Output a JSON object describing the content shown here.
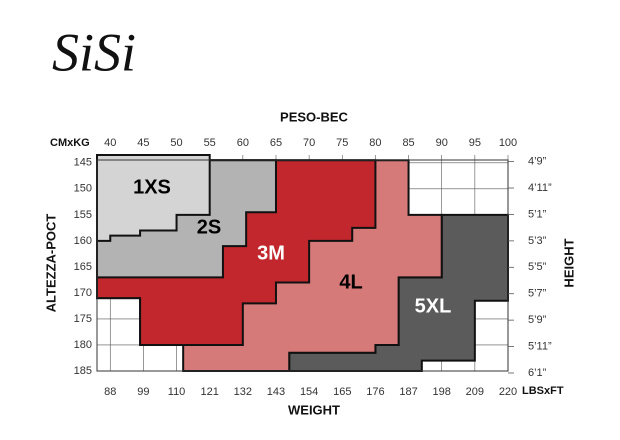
{
  "chart_data": {
    "type": "size-chart",
    "logo": "SiSi",
    "title": "PESO-BEC",
    "xunit_label": "CMxKG",
    "x2unit_label": "LBSxFT",
    "xlabel": "WEIGHT",
    "ylabel": "ALTEZZA-POCT",
    "y2label": "HEIGHT",
    "xlim": [
      38,
      100
    ],
    "xticks": [
      40,
      45,
      50,
      55,
      60,
      65,
      70,
      75,
      80,
      85,
      90,
      95,
      100
    ],
    "x2lim": [
      83.6,
      220
    ],
    "x2ticks": [
      88,
      99,
      110,
      121,
      132,
      143,
      154,
      165,
      176,
      187,
      198,
      209,
      220
    ],
    "ylim": [
      143.5,
      185
    ],
    "yticks": [
      145,
      150,
      155,
      160,
      165,
      170,
      175,
      180,
      185
    ],
    "y2lim": [
      56.5,
      72.85
    ],
    "y2ticks": [
      {
        "value": 57,
        "label": "4’9”"
      },
      {
        "value": 59,
        "label": "4’11”"
      },
      {
        "value": 61,
        "label": "5’1”"
      },
      {
        "value": 63,
        "label": "5’3”"
      },
      {
        "value": 65,
        "label": "5’5”"
      },
      {
        "value": 67,
        "label": "5’7”"
      },
      {
        "value": 69,
        "label": "5’9”"
      },
      {
        "value": 71,
        "label": "5’11”"
      },
      {
        "value": 73,
        "label": "6’1”"
      }
    ],
    "grid": true,
    "series": [
      {
        "name": "5XL",
        "color": "#5b5b5b",
        "label_color": "#ffffff",
        "points": [
          [
            90,
            155
          ],
          [
            100,
            155
          ],
          [
            100,
            171.5
          ],
          [
            95,
            171.5
          ],
          [
            95,
            183
          ],
          [
            87,
            183
          ],
          [
            87,
            185
          ],
          [
            67,
            185
          ],
          [
            67,
            181.5
          ],
          [
            80,
            181.5
          ],
          [
            80,
            180
          ],
          [
            83.5,
            180
          ],
          [
            83.5,
            167
          ],
          [
            90,
            167
          ]
        ]
      },
      {
        "name": "4L",
        "color": "#d67979",
        "label_color": "#000000",
        "points": [
          [
            38,
            144.5
          ],
          [
            85,
            144.5
          ],
          [
            85,
            155
          ],
          [
            90,
            155
          ],
          [
            90,
            167
          ],
          [
            83.5,
            167
          ],
          [
            83.5,
            180
          ],
          [
            80,
            180
          ],
          [
            80,
            181.5
          ],
          [
            67,
            181.5
          ],
          [
            67,
            185
          ],
          [
            51,
            185
          ],
          [
            51,
            180
          ],
          [
            44.5,
            180
          ],
          [
            44.5,
            171
          ],
          [
            38,
            171
          ]
        ]
      },
      {
        "name": "3M",
        "color": "#c1272d",
        "label_color": "#ffffff",
        "points": [
          [
            38,
            144.5
          ],
          [
            80,
            144.5
          ],
          [
            80,
            157.5
          ],
          [
            76.5,
            157.5
          ],
          [
            76.5,
            160
          ],
          [
            70,
            160
          ],
          [
            70,
            168
          ],
          [
            65,
            168
          ],
          [
            65,
            172
          ],
          [
            60,
            172
          ],
          [
            60,
            180
          ],
          [
            44.5,
            180
          ],
          [
            44.5,
            171
          ],
          [
            38,
            171
          ]
        ]
      },
      {
        "name": "2S",
        "color": "#b3b3b3",
        "label_color": "#000000",
        "points": [
          [
            38,
            144.5
          ],
          [
            65,
            144.5
          ],
          [
            65,
            154.5
          ],
          [
            60.5,
            154.5
          ],
          [
            60.5,
            161
          ],
          [
            57,
            161
          ],
          [
            57,
            167
          ],
          [
            38,
            167
          ]
        ]
      },
      {
        "name": "1XS",
        "color": "#d4d4d4",
        "label_color": "#000000",
        "points": [
          [
            38,
            143.5
          ],
          [
            55,
            143.5
          ],
          [
            55,
            155
          ],
          [
            50,
            155
          ],
          [
            50,
            158
          ],
          [
            44.5,
            158
          ],
          [
            44.5,
            159
          ],
          [
            40,
            159
          ],
          [
            40,
            160
          ],
          [
            38,
            160
          ]
        ]
      }
    ]
  }
}
